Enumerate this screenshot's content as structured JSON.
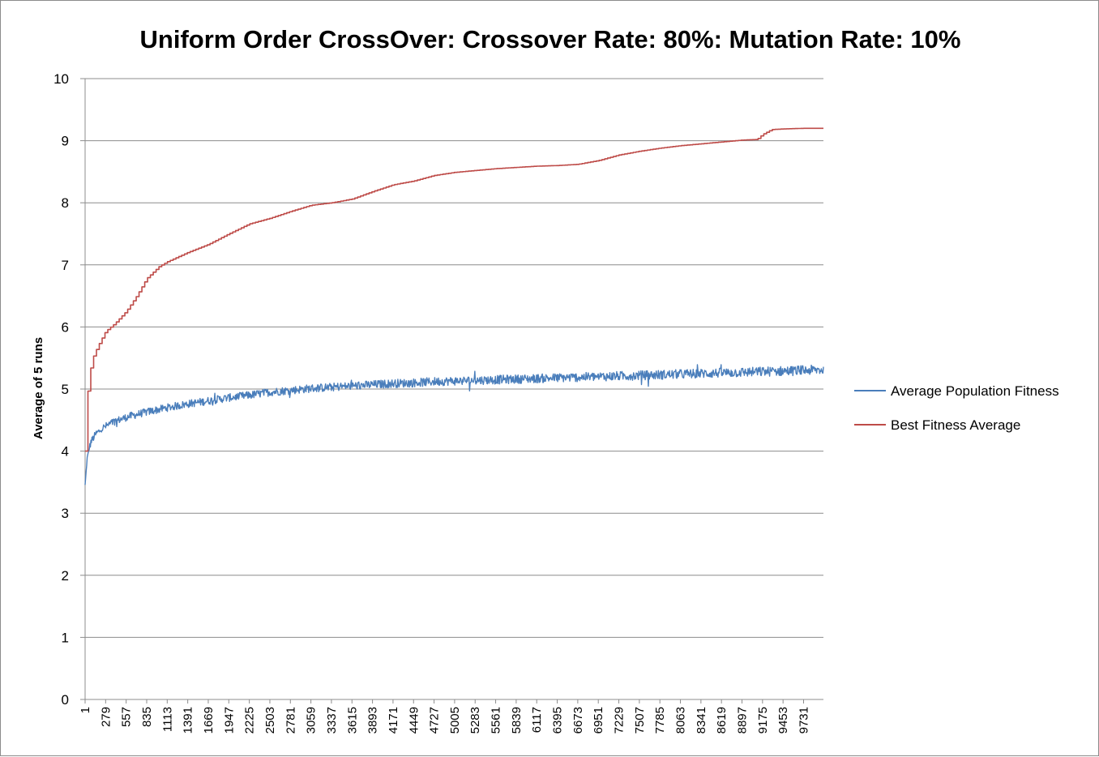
{
  "chart_data": {
    "type": "line",
    "title": "Uniform Order CrossOver: Crossover Rate: 80%: Mutation Rate: 10%",
    "xlabel": "",
    "ylabel": "Average of 5 runs",
    "ylim": [
      0,
      10
    ],
    "yticks": [
      "0",
      "1",
      "2",
      "3",
      "4",
      "5",
      "6",
      "7",
      "8",
      "9",
      "10"
    ],
    "xlim": [
      1,
      10000
    ],
    "xticks": [
      1,
      279,
      557,
      835,
      1113,
      1391,
      1669,
      1947,
      2225,
      2503,
      2781,
      3059,
      3337,
      3615,
      3893,
      4171,
      4449,
      4727,
      5005,
      5283,
      5561,
      5839,
      6117,
      6395,
      6673,
      6951,
      7229,
      7507,
      7785,
      8063,
      8341,
      8619,
      8897,
      9175,
      9453,
      9731
    ],
    "grid": "horizontal",
    "legend_position": "right",
    "series": [
      {
        "name": "Average Population Fitness",
        "color": "#4a7ebb",
        "noisy": true,
        "x": [
          1,
          30,
          80,
          150,
          250,
          400,
          600,
          835,
          1113,
          1391,
          1669,
          1947,
          2225,
          2503,
          2781,
          3059,
          3337,
          3615,
          3893,
          4171,
          4449,
          4727,
          5005,
          5283,
          5561,
          5839,
          6117,
          6395,
          6673,
          6951,
          7229,
          7507,
          7785,
          8063,
          8341,
          8619,
          8897,
          9175,
          9453,
          9731,
          10000
        ],
        "values": [
          3.45,
          3.9,
          4.15,
          4.28,
          4.38,
          4.48,
          4.56,
          4.63,
          4.7,
          4.76,
          4.81,
          4.86,
          4.9,
          4.95,
          4.98,
          5.01,
          5.03,
          5.05,
          5.07,
          5.09,
          5.1,
          5.12,
          5.13,
          5.14,
          5.15,
          5.16,
          5.17,
          5.18,
          5.19,
          5.2,
          5.21,
          5.22,
          5.23,
          5.24,
          5.25,
          5.26,
          5.27,
          5.28,
          5.29,
          5.3,
          5.31
        ]
      },
      {
        "name": "Best Fitness Average",
        "color": "#be4b48",
        "noisy": false,
        "x": [
          1,
          20,
          60,
          120,
          200,
          280,
          400,
          557,
          700,
          835,
          1000,
          1113,
          1391,
          1669,
          1947,
          2225,
          2503,
          2781,
          3059,
          3337,
          3615,
          3893,
          4171,
          4449,
          4727,
          5005,
          5283,
          5561,
          5839,
          6117,
          6395,
          6673,
          6951,
          7229,
          7507,
          7785,
          8063,
          8341,
          8619,
          8897,
          9100,
          9175,
          9300,
          9453,
          9731,
          10000
        ],
        "values": [
          4.0,
          4.7,
          5.25,
          5.55,
          5.75,
          5.93,
          6.05,
          6.25,
          6.5,
          6.78,
          6.97,
          7.05,
          7.2,
          7.33,
          7.5,
          7.66,
          7.75,
          7.86,
          7.96,
          8.0,
          8.06,
          8.18,
          8.29,
          8.35,
          8.44,
          8.49,
          8.52,
          8.55,
          8.57,
          8.59,
          8.6,
          8.62,
          8.68,
          8.77,
          8.83,
          8.88,
          8.92,
          8.95,
          8.98,
          9.01,
          9.02,
          9.1,
          9.18,
          9.19,
          9.2,
          9.2
        ]
      }
    ]
  }
}
